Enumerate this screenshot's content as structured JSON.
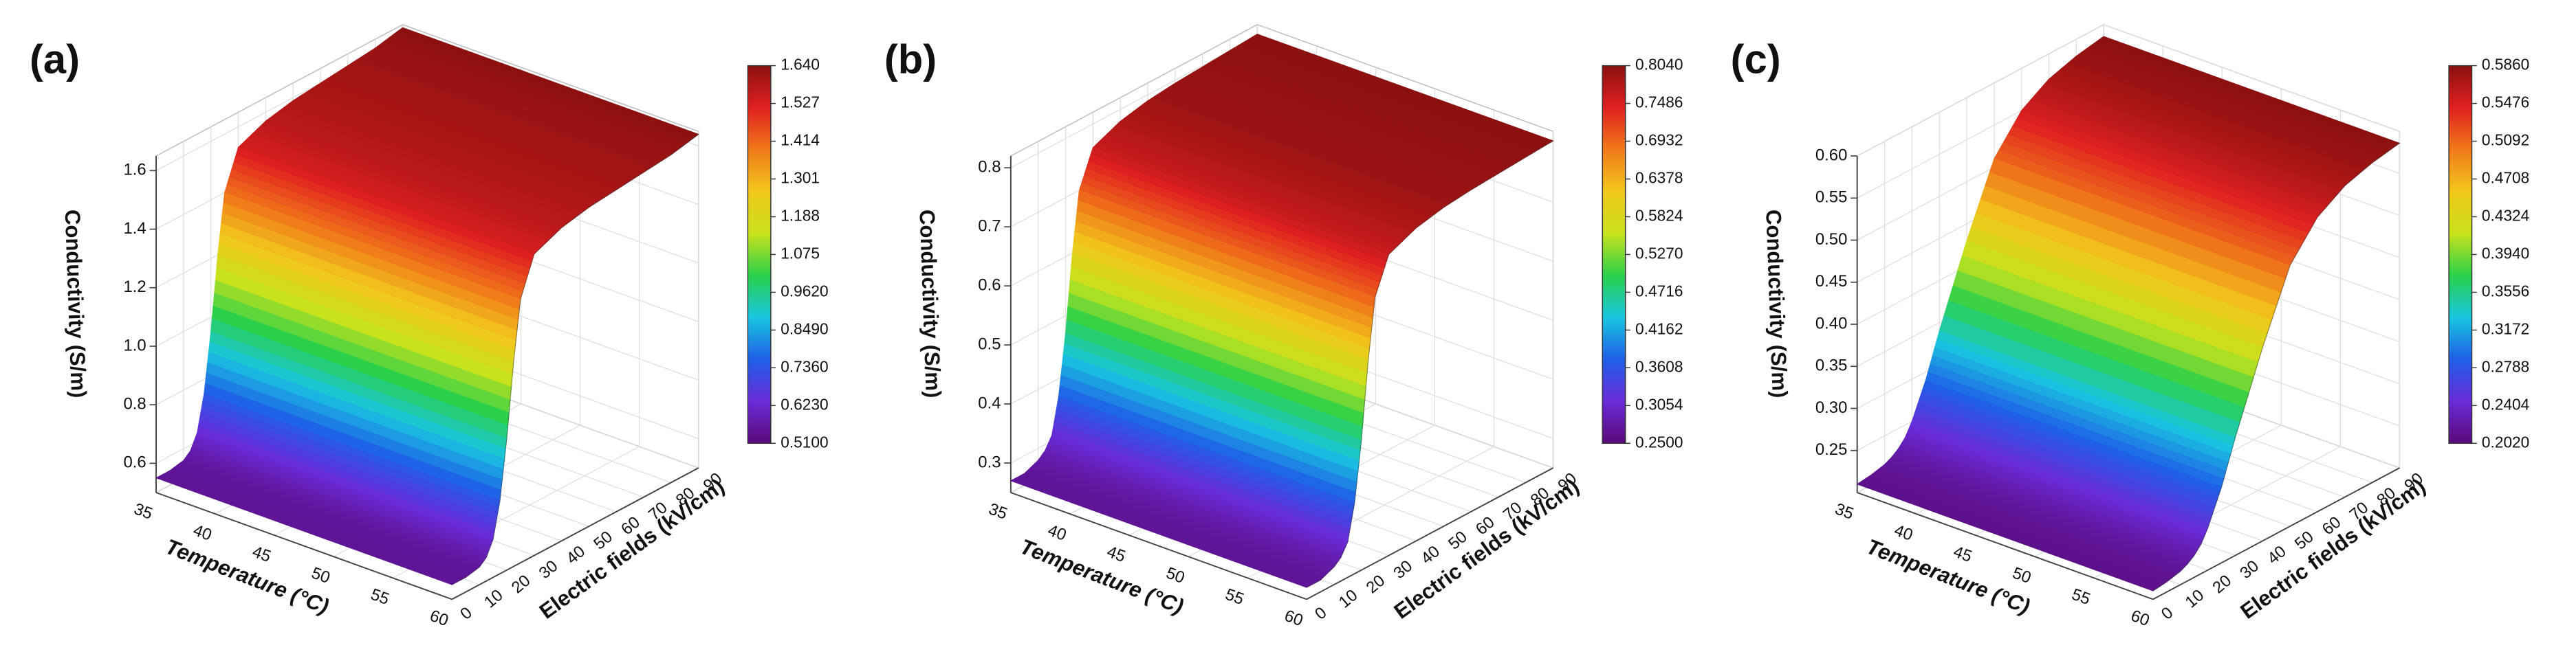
{
  "chart_data": [
    {
      "type": "surface3d",
      "panel_label": "(a)",
      "zlabel": "Conductivity (S/m)",
      "xlabel": "Temperature (°C)",
      "ylabel": "Electric fields (kV/cm)",
      "xlim": [
        35,
        60
      ],
      "xticks": [
        35,
        40,
        45,
        50,
        55,
        60
      ],
      "ylim": [
        0,
        90
      ],
      "yticks": [
        0,
        10,
        20,
        30,
        40,
        50,
        60,
        70,
        80,
        90
      ],
      "zlim": [
        0.5,
        1.65
      ],
      "zticks": [
        0.6,
        0.8,
        {
          "value": 1.0,
          "label": "1.0"
        },
        1.2,
        1.4,
        1.6
      ],
      "y": [
        0,
        5,
        10,
        12.5,
        15,
        17.5,
        20,
        22.5,
        25,
        30,
        40,
        50,
        60,
        70,
        80,
        90
      ],
      "values": [
        0.55,
        0.55,
        0.56,
        0.58,
        0.63,
        0.75,
        0.95,
        1.2,
        1.4,
        1.53,
        1.57,
        1.59,
        1.6,
        1.61,
        1.62,
        1.64
      ],
      "colorbar_ticks": [
        {
          "value": 1.64,
          "label": "1.640"
        },
        1.527,
        1.414,
        1.301,
        1.188,
        1.075,
        {
          "value": 0.962,
          "label": "0.9620"
        },
        {
          "value": 0.849,
          "label": "0.8490"
        },
        {
          "value": 0.736,
          "label": "0.7360"
        },
        {
          "value": 0.623,
          "label": "0.6230"
        },
        {
          "value": 0.51,
          "label": "0.5100"
        }
      ],
      "colormap": [
        "#5a0a78",
        "#6a2bd8",
        "#1f5fe6",
        "#19c6e0",
        "#2ad04a",
        "#c8e21c",
        "#f2c81c",
        "#f07a1a",
        "#e02020",
        "#8c1010"
      ]
    },
    {
      "type": "surface3d",
      "panel_label": "(b)",
      "zlabel": "Conductivity (S/m)",
      "xlabel": "Temperature (°C)",
      "ylabel": "Electric fields (kV/cm)",
      "xlim": [
        35,
        60
      ],
      "xticks": [
        35,
        40,
        45,
        50,
        55,
        60
      ],
      "ylim": [
        0,
        90
      ],
      "yticks": [
        0,
        10,
        20,
        30,
        40,
        50,
        60,
        70,
        80,
        90
      ],
      "zlim": [
        0.25,
        0.82
      ],
      "zticks": [
        0.3,
        0.4,
        0.5,
        0.6,
        0.7,
        0.8
      ],
      "y": [
        0,
        5,
        10,
        12.5,
        15,
        17.5,
        20,
        22.5,
        25,
        30,
        40,
        50,
        60,
        70,
        80,
        90
      ],
      "values": [
        0.27,
        0.27,
        0.28,
        0.29,
        0.31,
        0.37,
        0.47,
        0.6,
        0.7,
        0.76,
        0.78,
        0.79,
        0.795,
        0.798,
        0.801,
        0.804
      ],
      "colorbar_ticks": [
        {
          "value": 0.804,
          "label": "0.8040"
        },
        0.7486,
        {
          "value": 0.6932,
          "label": "0.6932"
        },
        0.6378,
        0.5824,
        {
          "value": 0.527,
          "label": "0.5270"
        },
        0.4716,
        0.4162,
        0.3608,
        0.3054,
        {
          "value": 0.25,
          "label": "0.2500"
        }
      ],
      "colormap": [
        "#5a0a78",
        "#6a2bd8",
        "#1f5fe6",
        "#19c6e0",
        "#2ad04a",
        "#c8e21c",
        "#f2c81c",
        "#f07a1a",
        "#e02020",
        "#8c1010"
      ]
    },
    {
      "type": "surface3d",
      "panel_label": "(c)",
      "zlabel": "Conductivity (S/m)",
      "xlabel": "Temperature (°C)",
      "ylabel": "Electric fields (kV/cm)",
      "xlim": [
        35,
        60
      ],
      "xticks": [
        35,
        40,
        45,
        50,
        55,
        60
      ],
      "ylim": [
        0,
        90
      ],
      "yticks": [
        0,
        10,
        20,
        30,
        40,
        50,
        60,
        70,
        80,
        90
      ],
      "zlim": [
        0.2,
        0.6
      ],
      "zticks": [
        0.25,
        {
          "value": 0.3,
          "label": "0.30"
        },
        0.35,
        {
          "value": 0.4,
          "label": "0.40"
        },
        0.45,
        {
          "value": 0.5,
          "label": "0.50"
        },
        0.55,
        {
          "value": 0.6,
          "label": "0.60"
        }
      ],
      "y": [
        0,
        5,
        10,
        12.5,
        15,
        17.5,
        20,
        22.5,
        25,
        30,
        40,
        50,
        60,
        70,
        80,
        90
      ],
      "values": [
        0.21,
        0.212,
        0.216,
        0.22,
        0.226,
        0.235,
        0.25,
        0.27,
        0.29,
        0.34,
        0.43,
        0.51,
        0.55,
        0.57,
        0.58,
        0.586
      ],
      "colorbar_ticks": [
        {
          "value": 0.586,
          "label": "0.5860"
        },
        0.5476,
        0.5092,
        0.4708,
        0.4324,
        {
          "value": 0.394,
          "label": "0.3940"
        },
        0.3556,
        0.3172,
        0.2788,
        0.2404,
        {
          "value": 0.202,
          "label": "0.2020"
        }
      ],
      "colormap": [
        "#5a0a78",
        "#6a2bd8",
        "#1f5fe6",
        "#19c6e0",
        "#2ad04a",
        "#c8e21c",
        "#f2c81c",
        "#f07a1a",
        "#e02020",
        "#8c1010"
      ]
    }
  ]
}
